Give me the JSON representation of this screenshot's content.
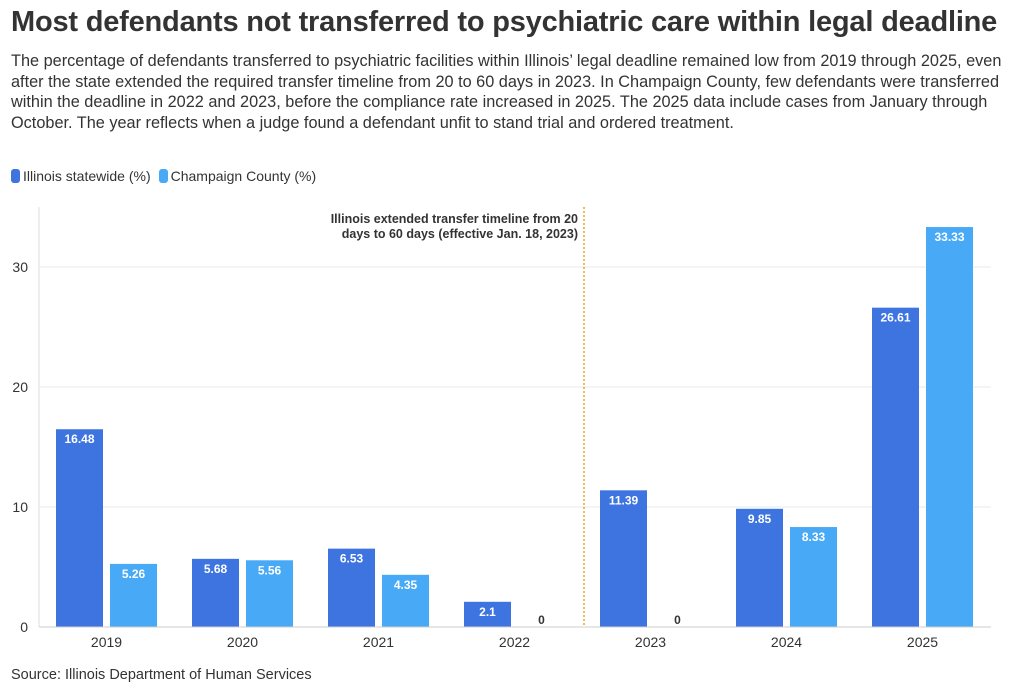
{
  "chart_data": {
    "type": "bar",
    "title": "Most defendants not transferred to psychiatric care within legal deadline",
    "subtitle": "The percentage of defendants transferred to psychiatric facilities within Illinois’ legal deadline remained low from 2019 through 2025, even after the state extended the required transfer timeline from 20 to 60 days in 2023. In Champaign County, few defendants were transferred within the deadline in 2022 and 2023, before the compliance rate increased in 2025. The 2025 data include cases from January through October. The year reflects when a judge found a defendant unfit to stand trial and ordered treatment.",
    "categories": [
      "2019",
      "2020",
      "2021",
      "2022",
      "2023",
      "2024",
      "2025"
    ],
    "series": [
      {
        "name": "Illinois statewide (%)",
        "color": "#3d74e0",
        "values": [
          16.48,
          5.68,
          6.53,
          2.1,
          11.39,
          9.85,
          26.61
        ],
        "labels": [
          "16.48",
          "5.68",
          "6.53",
          "2.1",
          "11.39",
          "9.85",
          "26.61"
        ]
      },
      {
        "name": "Champaign County (%)",
        "color": "#48aaf6",
        "values": [
          5.26,
          5.56,
          4.35,
          0,
          0,
          8.33,
          33.33
        ],
        "labels": [
          "5.26",
          "5.56",
          "4.35",
          "0",
          "0",
          "8.33",
          "33.33"
        ]
      }
    ],
    "ylim": [
      0,
      35
    ],
    "yticks": [
      0,
      10,
      20,
      30
    ],
    "grid": true,
    "legend_position": "top-left",
    "annotation": {
      "lines": [
        "Illinois extended transfer timeline from 20",
        "days to 60 days (effective Jan. 18, 2023)"
      ],
      "line_color": "#f0a31c"
    },
    "source": "Source: Illinois Department of Human Services"
  }
}
